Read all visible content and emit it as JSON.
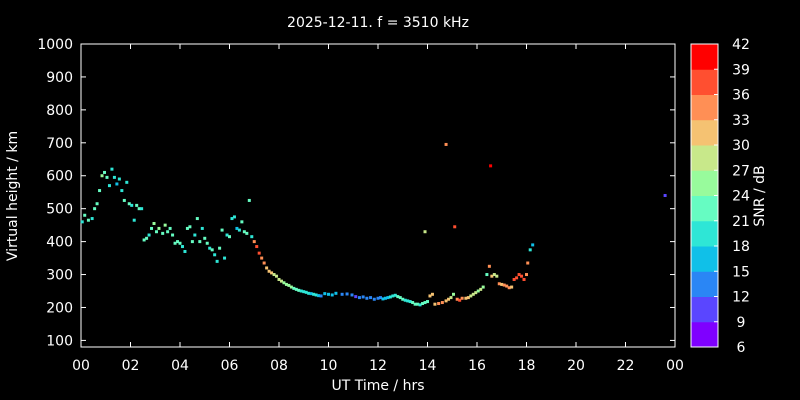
{
  "chart_data": {
    "type": "scatter",
    "title": "2025-12-11. f = 3510 kHz",
    "xlabel": "UT Time / hrs",
    "ylabel": "Virtual height / km",
    "xlim": [
      0,
      24
    ],
    "ylim": [
      80,
      1000
    ],
    "xticks": [
      "00",
      "02",
      "04",
      "06",
      "08",
      "10",
      "12",
      "14",
      "16",
      "18",
      "20",
      "22",
      "00"
    ],
    "yticks": [
      100,
      200,
      300,
      400,
      500,
      600,
      700,
      800,
      900,
      1000
    ],
    "grid": false,
    "colorbar": {
      "label": "SNR / dB",
      "range": [
        6,
        42
      ],
      "ticks": [
        6,
        9,
        12,
        15,
        18,
        21,
        24,
        27,
        30,
        33,
        36,
        39,
        42
      ],
      "colors": [
        "#7f00ff",
        "#5a46ff",
        "#2a86f5",
        "#10c0e8",
        "#2ee6d6",
        "#66fcc2",
        "#98fb9c",
        "#c8e88a",
        "#f5c272",
        "#ff8f55",
        "#ff4f30",
        "#ff0000"
      ]
    },
    "points": [
      {
        "x": 0.05,
        "y": 460,
        "snr": 20
      },
      {
        "x": 0.15,
        "y": 480,
        "snr": 22
      },
      {
        "x": 0.3,
        "y": 465,
        "snr": 21
      },
      {
        "x": 0.45,
        "y": 470,
        "snr": 20
      },
      {
        "x": 0.55,
        "y": 500,
        "snr": 22
      },
      {
        "x": 0.65,
        "y": 515,
        "snr": 23
      },
      {
        "x": 0.75,
        "y": 555,
        "snr": 21
      },
      {
        "x": 0.85,
        "y": 600,
        "snr": 24
      },
      {
        "x": 0.95,
        "y": 610,
        "snr": 22
      },
      {
        "x": 1.05,
        "y": 595,
        "snr": 21
      },
      {
        "x": 1.15,
        "y": 570,
        "snr": 19
      },
      {
        "x": 1.25,
        "y": 620,
        "snr": 20
      },
      {
        "x": 1.35,
        "y": 595,
        "snr": 19
      },
      {
        "x": 1.45,
        "y": 575,
        "snr": 17
      },
      {
        "x": 1.55,
        "y": 590,
        "snr": 20
      },
      {
        "x": 1.65,
        "y": 555,
        "snr": 20
      },
      {
        "x": 1.75,
        "y": 525,
        "snr": 21
      },
      {
        "x": 1.85,
        "y": 580,
        "snr": 20
      },
      {
        "x": 1.95,
        "y": 515,
        "snr": 21
      },
      {
        "x": 2.05,
        "y": 510,
        "snr": 20
      },
      {
        "x": 2.15,
        "y": 465,
        "snr": 19
      },
      {
        "x": 2.25,
        "y": 510,
        "snr": 22
      },
      {
        "x": 2.35,
        "y": 500,
        "snr": 21
      },
      {
        "x": 2.45,
        "y": 500,
        "snr": 20
      },
      {
        "x": 2.55,
        "y": 405,
        "snr": 21
      },
      {
        "x": 2.65,
        "y": 410,
        "snr": 22
      },
      {
        "x": 2.75,
        "y": 420,
        "snr": 20
      },
      {
        "x": 2.85,
        "y": 440,
        "snr": 23
      },
      {
        "x": 2.95,
        "y": 455,
        "snr": 25
      },
      {
        "x": 3.05,
        "y": 430,
        "snr": 23
      },
      {
        "x": 3.15,
        "y": 440,
        "snr": 24
      },
      {
        "x": 3.3,
        "y": 425,
        "snr": 22
      },
      {
        "x": 3.4,
        "y": 450,
        "snr": 24
      },
      {
        "x": 3.5,
        "y": 430,
        "snr": 23
      },
      {
        "x": 3.6,
        "y": 440,
        "snr": 22
      },
      {
        "x": 3.7,
        "y": 420,
        "snr": 21
      },
      {
        "x": 3.8,
        "y": 395,
        "snr": 23
      },
      {
        "x": 3.9,
        "y": 400,
        "snr": 21
      },
      {
        "x": 4.0,
        "y": 395,
        "snr": 22
      },
      {
        "x": 4.1,
        "y": 385,
        "snr": 20
      },
      {
        "x": 4.2,
        "y": 370,
        "snr": 19
      },
      {
        "x": 4.3,
        "y": 440,
        "snr": 22
      },
      {
        "x": 4.4,
        "y": 445,
        "snr": 21
      },
      {
        "x": 4.5,
        "y": 400,
        "snr": 23
      },
      {
        "x": 4.6,
        "y": 420,
        "snr": 20
      },
      {
        "x": 4.7,
        "y": 470,
        "snr": 22
      },
      {
        "x": 4.8,
        "y": 400,
        "snr": 21
      },
      {
        "x": 4.9,
        "y": 440,
        "snr": 20
      },
      {
        "x": 5.0,
        "y": 410,
        "snr": 22
      },
      {
        "x": 5.1,
        "y": 395,
        "snr": 21
      },
      {
        "x": 5.2,
        "y": 380,
        "snr": 20
      },
      {
        "x": 5.3,
        "y": 375,
        "snr": 21
      },
      {
        "x": 5.4,
        "y": 360,
        "snr": 19
      },
      {
        "x": 5.5,
        "y": 340,
        "snr": 20
      },
      {
        "x": 5.6,
        "y": 380,
        "snr": 21
      },
      {
        "x": 5.7,
        "y": 435,
        "snr": 21
      },
      {
        "x": 5.8,
        "y": 350,
        "snr": 18
      },
      {
        "x": 5.9,
        "y": 420,
        "snr": 20
      },
      {
        "x": 6.0,
        "y": 415,
        "snr": 22
      },
      {
        "x": 6.1,
        "y": 470,
        "snr": 20
      },
      {
        "x": 6.2,
        "y": 475,
        "snr": 19
      },
      {
        "x": 6.3,
        "y": 440,
        "snr": 17
      },
      {
        "x": 6.4,
        "y": 435,
        "snr": 20
      },
      {
        "x": 6.5,
        "y": 460,
        "snr": 21
      },
      {
        "x": 6.6,
        "y": 430,
        "snr": 22
      },
      {
        "x": 6.7,
        "y": 425,
        "snr": 21
      },
      {
        "x": 6.8,
        "y": 525,
        "snr": 23
      },
      {
        "x": 6.9,
        "y": 415,
        "snr": 20
      },
      {
        "x": 7.0,
        "y": 400,
        "snr": 35
      },
      {
        "x": 7.1,
        "y": 385,
        "snr": 38
      },
      {
        "x": 7.2,
        "y": 365,
        "snr": 36
      },
      {
        "x": 7.3,
        "y": 350,
        "snr": 34
      },
      {
        "x": 7.4,
        "y": 335,
        "snr": 33
      },
      {
        "x": 7.5,
        "y": 320,
        "snr": 32
      },
      {
        "x": 7.6,
        "y": 310,
        "snr": 31
      },
      {
        "x": 7.7,
        "y": 305,
        "snr": 30
      },
      {
        "x": 7.8,
        "y": 300,
        "snr": 29
      },
      {
        "x": 7.9,
        "y": 295,
        "snr": 29
      },
      {
        "x": 8.0,
        "y": 285,
        "snr": 28
      },
      {
        "x": 8.1,
        "y": 280,
        "snr": 27
      },
      {
        "x": 8.2,
        "y": 275,
        "snr": 26
      },
      {
        "x": 8.3,
        "y": 270,
        "snr": 25
      },
      {
        "x": 8.4,
        "y": 267,
        "snr": 24
      },
      {
        "x": 8.5,
        "y": 262,
        "snr": 24
      },
      {
        "x": 8.6,
        "y": 258,
        "snr": 23
      },
      {
        "x": 8.7,
        "y": 255,
        "snr": 22
      },
      {
        "x": 8.8,
        "y": 252,
        "snr": 21
      },
      {
        "x": 8.9,
        "y": 250,
        "snr": 20
      },
      {
        "x": 9.0,
        "y": 248,
        "snr": 19
      },
      {
        "x": 9.1,
        "y": 246,
        "snr": 19
      },
      {
        "x": 9.2,
        "y": 243,
        "snr": 18
      },
      {
        "x": 9.3,
        "y": 242,
        "snr": 17
      },
      {
        "x": 9.4,
        "y": 240,
        "snr": 18
      },
      {
        "x": 9.5,
        "y": 238,
        "snr": 19
      },
      {
        "x": 9.6,
        "y": 236,
        "snr": 15
      },
      {
        "x": 9.7,
        "y": 235,
        "snr": 14
      },
      {
        "x": 9.85,
        "y": 242,
        "snr": 17
      },
      {
        "x": 10.0,
        "y": 240,
        "snr": 16
      },
      {
        "x": 10.15,
        "y": 238,
        "snr": 15
      },
      {
        "x": 10.3,
        "y": 243,
        "snr": 16
      },
      {
        "x": 10.55,
        "y": 240,
        "snr": 14
      },
      {
        "x": 10.75,
        "y": 241,
        "snr": 13
      },
      {
        "x": 10.95,
        "y": 238,
        "snr": 12
      },
      {
        "x": 11.1,
        "y": 233,
        "snr": 11
      },
      {
        "x": 11.25,
        "y": 230,
        "snr": 12
      },
      {
        "x": 11.4,
        "y": 232,
        "snr": 13
      },
      {
        "x": 11.55,
        "y": 228,
        "snr": 13
      },
      {
        "x": 11.7,
        "y": 230,
        "snr": 14
      },
      {
        "x": 11.85,
        "y": 225,
        "snr": 12
      },
      {
        "x": 12.0,
        "y": 228,
        "snr": 13
      },
      {
        "x": 12.1,
        "y": 230,
        "snr": 14
      },
      {
        "x": 12.2,
        "y": 226,
        "snr": 15
      },
      {
        "x": 12.3,
        "y": 228,
        "snr": 16
      },
      {
        "x": 12.4,
        "y": 230,
        "snr": 17
      },
      {
        "x": 12.5,
        "y": 232,
        "snr": 18
      },
      {
        "x": 12.6,
        "y": 235,
        "snr": 19
      },
      {
        "x": 12.7,
        "y": 237,
        "snr": 20
      },
      {
        "x": 12.8,
        "y": 233,
        "snr": 21
      },
      {
        "x": 12.9,
        "y": 230,
        "snr": 22
      },
      {
        "x": 13.0,
        "y": 225,
        "snr": 21
      },
      {
        "x": 13.1,
        "y": 222,
        "snr": 20
      },
      {
        "x": 13.2,
        "y": 220,
        "snr": 19
      },
      {
        "x": 13.3,
        "y": 218,
        "snr": 20
      },
      {
        "x": 13.4,
        "y": 215,
        "snr": 21
      },
      {
        "x": 13.5,
        "y": 210,
        "snr": 22
      },
      {
        "x": 13.6,
        "y": 210,
        "snr": 21
      },
      {
        "x": 13.7,
        "y": 208,
        "snr": 20
      },
      {
        "x": 13.8,
        "y": 212,
        "snr": 21
      },
      {
        "x": 13.9,
        "y": 215,
        "snr": 22
      },
      {
        "x": 14.0,
        "y": 218,
        "snr": 23
      },
      {
        "x": 14.1,
        "y": 235,
        "snr": 30
      },
      {
        "x": 14.2,
        "y": 240,
        "snr": 31
      },
      {
        "x": 14.3,
        "y": 210,
        "snr": 32
      },
      {
        "x": 14.45,
        "y": 212,
        "snr": 33
      },
      {
        "x": 14.6,
        "y": 215,
        "snr": 34
      },
      {
        "x": 14.75,
        "y": 220,
        "snr": 32
      },
      {
        "x": 14.85,
        "y": 225,
        "snr": 30
      },
      {
        "x": 14.95,
        "y": 230,
        "snr": 28
      },
      {
        "x": 15.05,
        "y": 240,
        "snr": 26
      },
      {
        "x": 15.2,
        "y": 225,
        "snr": 34
      },
      {
        "x": 15.3,
        "y": 222,
        "snr": 36
      },
      {
        "x": 15.4,
        "y": 228,
        "snr": 33
      },
      {
        "x": 15.55,
        "y": 228,
        "snr": 31
      },
      {
        "x": 15.65,
        "y": 230,
        "snr": 30
      },
      {
        "x": 15.75,
        "y": 235,
        "snr": 29
      },
      {
        "x": 15.85,
        "y": 240,
        "snr": 28
      },
      {
        "x": 15.95,
        "y": 245,
        "snr": 27
      },
      {
        "x": 16.05,
        "y": 250,
        "snr": 26
      },
      {
        "x": 16.15,
        "y": 255,
        "snr": 27
      },
      {
        "x": 16.25,
        "y": 262,
        "snr": 25
      },
      {
        "x": 16.4,
        "y": 300,
        "snr": 22
      },
      {
        "x": 16.5,
        "y": 325,
        "snr": 34
      },
      {
        "x": 16.6,
        "y": 295,
        "snr": 30
      },
      {
        "x": 16.7,
        "y": 300,
        "snr": 28
      },
      {
        "x": 16.8,
        "y": 295,
        "snr": 27
      },
      {
        "x": 16.9,
        "y": 272,
        "snr": 33
      },
      {
        "x": 17.0,
        "y": 270,
        "snr": 32
      },
      {
        "x": 17.1,
        "y": 268,
        "snr": 33
      },
      {
        "x": 17.2,
        "y": 265,
        "snr": 34
      },
      {
        "x": 17.3,
        "y": 260,
        "snr": 33
      },
      {
        "x": 17.4,
        "y": 262,
        "snr": 32
      },
      {
        "x": 17.5,
        "y": 285,
        "snr": 37
      },
      {
        "x": 17.6,
        "y": 290,
        "snr": 36
      },
      {
        "x": 17.7,
        "y": 300,
        "snr": 38
      },
      {
        "x": 17.8,
        "y": 295,
        "snr": 37
      },
      {
        "x": 17.9,
        "y": 285,
        "snr": 36
      },
      {
        "x": 18.0,
        "y": 300,
        "snr": 35
      },
      {
        "x": 18.05,
        "y": 335,
        "snr": 34
      },
      {
        "x": 18.15,
        "y": 375,
        "snr": 20
      },
      {
        "x": 18.25,
        "y": 390,
        "snr": 17
      },
      {
        "x": 13.9,
        "y": 430,
        "snr": 29
      },
      {
        "x": 14.75,
        "y": 695,
        "snr": 33
      },
      {
        "x": 15.1,
        "y": 445,
        "snr": 37
      },
      {
        "x": 16.55,
        "y": 630,
        "snr": 41
      },
      {
        "x": 23.6,
        "y": 540,
        "snr": 11
      }
    ]
  }
}
